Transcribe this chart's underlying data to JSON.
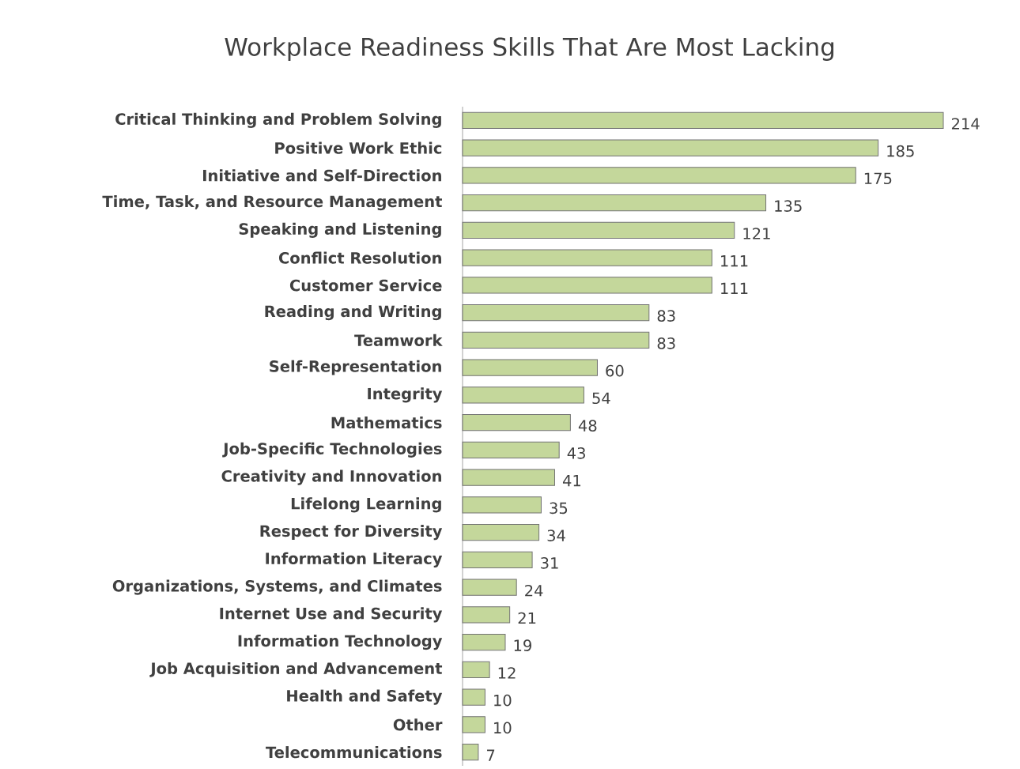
{
  "chart_data": {
    "type": "bar",
    "orientation": "horizontal",
    "title": "Workplace Readiness Skills That Are Most Lacking",
    "categories": [
      "Critical Thinking and Problem Solving",
      "Positive Work Ethic",
      "Initiative and Self-Direction",
      "Time, Task, and Resource Management",
      "Speaking and Listening",
      "Conflict Resolution",
      "Customer Service",
      "Reading and Writing",
      "Teamwork",
      "Self-Representation",
      "Integrity",
      "Mathematics",
      "Job-Specific Technologies",
      "Creativity and Innovation",
      "Lifelong Learning",
      "Respect for Diversity",
      "Information Literacy",
      "Organizations, Systems, and Climates",
      "Internet Use and Security",
      "Information Technology",
      "Job Acquisition and Advancement",
      "Health and Safety",
      "Other",
      "Telecommunications"
    ],
    "values": [
      214,
      185,
      175,
      135,
      121,
      111,
      111,
      83,
      83,
      60,
      54,
      48,
      43,
      41,
      35,
      34,
      31,
      24,
      21,
      19,
      12,
      10,
      10,
      7
    ],
    "color": "#c4d79b",
    "data_labels": true
  }
}
